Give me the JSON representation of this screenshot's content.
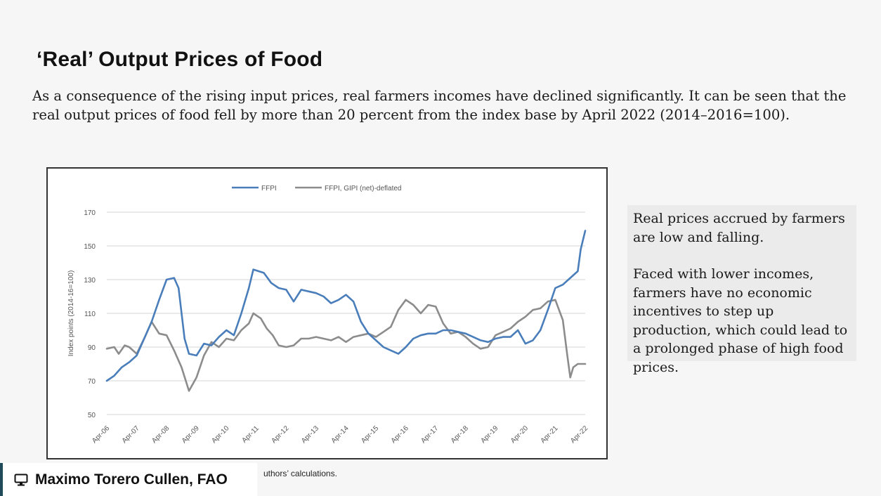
{
  "slide": {
    "title": "‘Real’ Output Prices of Food",
    "body": "As a consequence of the rising input prices, real farmers incomes have  declined significantly. It can be seen that the real output prices of food fell by more than 20 percent from the index base by April 2022 (2014–2016=100).",
    "side_paragraphs": [
      "Real prices accrued by farmers are low and falling.",
      "Faced with lower incomes, farmers have no economic incentives to step up production, which could lead to a prolonged phase of high food prices."
    ],
    "source_note": "uthors’ calculations.",
    "presenter": "Maximo Torero Cullen, FAO",
    "presenter_icon": "monitor-icon"
  },
  "colors": {
    "ffpi": "#4a7ebb",
    "deflated": "#8c8c8c",
    "accent": "#1e4a5a"
  },
  "chart_data": {
    "type": "line",
    "title": "",
    "xlabel": "",
    "ylabel": "Index points (2014-16=100)",
    "ylim": [
      50,
      170
    ],
    "yticks": [
      50,
      70,
      90,
      110,
      130,
      150,
      170
    ],
    "grid": true,
    "legend_position": "top-center",
    "x_start": 2006.25,
    "x_end": 2022.25,
    "xtick_labels": [
      "Apr-06",
      "Apr-07",
      "Apr-08",
      "Apr-09",
      "Apr-10",
      "Apr-11",
      "Apr-12",
      "Apr-13",
      "Apr-14",
      "Apr-15",
      "Apr-16",
      "Apr-17",
      "Apr-18",
      "Apr-19",
      "Apr-20",
      "Apr-21",
      "Apr-22"
    ],
    "series": [
      {
        "name": "FFPI",
        "color_key": "ffpi",
        "points": [
          [
            2006.25,
            70
          ],
          [
            2006.5,
            73
          ],
          [
            2006.75,
            78
          ],
          [
            2007.0,
            81
          ],
          [
            2007.25,
            85
          ],
          [
            2007.5,
            95
          ],
          [
            2007.75,
            105
          ],
          [
            2008.0,
            118
          ],
          [
            2008.25,
            130
          ],
          [
            2008.5,
            131
          ],
          [
            2008.65,
            125
          ],
          [
            2008.85,
            95
          ],
          [
            2009.0,
            86
          ],
          [
            2009.25,
            85
          ],
          [
            2009.5,
            92
          ],
          [
            2009.75,
            91
          ],
          [
            2010.0,
            96
          ],
          [
            2010.25,
            100
          ],
          [
            2010.5,
            97
          ],
          [
            2010.75,
            110
          ],
          [
            2011.0,
            125
          ],
          [
            2011.15,
            136
          ],
          [
            2011.5,
            134
          ],
          [
            2011.75,
            128
          ],
          [
            2012.0,
            125
          ],
          [
            2012.25,
            124
          ],
          [
            2012.5,
            117
          ],
          [
            2012.75,
            124
          ],
          [
            2013.0,
            123
          ],
          [
            2013.25,
            122
          ],
          [
            2013.5,
            120
          ],
          [
            2013.75,
            116
          ],
          [
            2014.0,
            118
          ],
          [
            2014.25,
            121
          ],
          [
            2014.5,
            117
          ],
          [
            2014.75,
            105
          ],
          [
            2015.0,
            98
          ],
          [
            2015.25,
            94
          ],
          [
            2015.5,
            90
          ],
          [
            2015.75,
            88
          ],
          [
            2016.0,
            86
          ],
          [
            2016.25,
            90
          ],
          [
            2016.5,
            95
          ],
          [
            2016.75,
            97
          ],
          [
            2017.0,
            98
          ],
          [
            2017.25,
            98
          ],
          [
            2017.5,
            100
          ],
          [
            2017.75,
            100
          ],
          [
            2018.0,
            99
          ],
          [
            2018.25,
            98
          ],
          [
            2018.5,
            96
          ],
          [
            2018.75,
            94
          ],
          [
            2019.0,
            93
          ],
          [
            2019.25,
            95
          ],
          [
            2019.5,
            96
          ],
          [
            2019.75,
            96
          ],
          [
            2020.0,
            100
          ],
          [
            2020.25,
            92
          ],
          [
            2020.5,
            94
          ],
          [
            2020.75,
            100
          ],
          [
            2021.0,
            112
          ],
          [
            2021.25,
            125
          ],
          [
            2021.5,
            127
          ],
          [
            2021.75,
            131
          ],
          [
            2022.0,
            135
          ],
          [
            2022.1,
            148
          ],
          [
            2022.25,
            159
          ]
        ]
      },
      {
        "name": "FFPI, GIPI (net)-deflated",
        "color_key": "deflated",
        "points": [
          [
            2006.25,
            89
          ],
          [
            2006.5,
            90
          ],
          [
            2006.65,
            86
          ],
          [
            2006.85,
            91
          ],
          [
            2007.0,
            90
          ],
          [
            2007.25,
            86
          ],
          [
            2007.5,
            95
          ],
          [
            2007.75,
            105
          ],
          [
            2008.0,
            98
          ],
          [
            2008.25,
            97
          ],
          [
            2008.5,
            88
          ],
          [
            2008.75,
            78
          ],
          [
            2009.0,
            64
          ],
          [
            2009.25,
            72
          ],
          [
            2009.5,
            85
          ],
          [
            2009.75,
            93
          ],
          [
            2010.0,
            90
          ],
          [
            2010.25,
            95
          ],
          [
            2010.5,
            94
          ],
          [
            2010.75,
            100
          ],
          [
            2011.0,
            104
          ],
          [
            2011.15,
            110
          ],
          [
            2011.4,
            107
          ],
          [
            2011.6,
            101
          ],
          [
            2011.8,
            97
          ],
          [
            2012.0,
            91
          ],
          [
            2012.25,
            90
          ],
          [
            2012.5,
            91
          ],
          [
            2012.75,
            95
          ],
          [
            2013.0,
            95
          ],
          [
            2013.25,
            96
          ],
          [
            2013.5,
            95
          ],
          [
            2013.75,
            94
          ],
          [
            2014.0,
            96
          ],
          [
            2014.25,
            93
          ],
          [
            2014.5,
            96
          ],
          [
            2014.75,
            97
          ],
          [
            2015.0,
            98
          ],
          [
            2015.25,
            96
          ],
          [
            2015.5,
            99
          ],
          [
            2015.75,
            102
          ],
          [
            2016.0,
            112
          ],
          [
            2016.25,
            118
          ],
          [
            2016.5,
            115
          ],
          [
            2016.75,
            110
          ],
          [
            2017.0,
            115
          ],
          [
            2017.25,
            114
          ],
          [
            2017.5,
            104
          ],
          [
            2017.75,
            98
          ],
          [
            2018.0,
            99
          ],
          [
            2018.25,
            96
          ],
          [
            2018.5,
            92
          ],
          [
            2018.75,
            89
          ],
          [
            2019.0,
            90
          ],
          [
            2019.25,
            97
          ],
          [
            2019.5,
            99
          ],
          [
            2019.75,
            101
          ],
          [
            2020.0,
            105
          ],
          [
            2020.25,
            108
          ],
          [
            2020.5,
            112
          ],
          [
            2020.75,
            113
          ],
          [
            2021.0,
            117
          ],
          [
            2021.25,
            118
          ],
          [
            2021.5,
            106
          ],
          [
            2021.65,
            85
          ],
          [
            2021.75,
            72
          ],
          [
            2021.85,
            78
          ],
          [
            2022.0,
            80
          ],
          [
            2022.25,
            80
          ]
        ]
      }
    ]
  }
}
